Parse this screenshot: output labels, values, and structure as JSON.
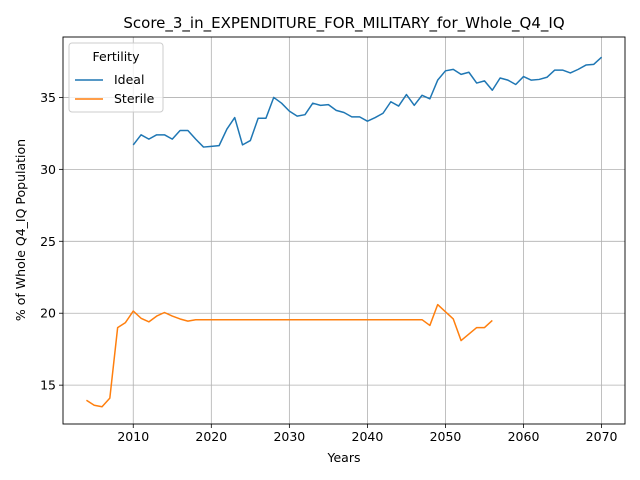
{
  "chart_data": {
    "type": "line",
    "title": "Score_3_in_EXPENDITURE_FOR_MILITARY_for_Whole_Q4_IQ",
    "xlabel": "Years",
    "ylabel": "% of Whole Q4_IQ Population",
    "xlim": [
      2001,
      2073
    ],
    "ylim": [
      12.3,
      39.2
    ],
    "xticks": [
      2010,
      2020,
      2030,
      2040,
      2050,
      2060,
      2070
    ],
    "yticks": [
      15,
      20,
      25,
      30,
      35
    ],
    "grid": true,
    "legend": {
      "title": "Fertility",
      "placement": "top-left"
    },
    "series": [
      {
        "name": "Ideal",
        "color": "#1f77b4",
        "x": [
          2010,
          2011,
          2012,
          2013,
          2014,
          2015,
          2016,
          2017,
          2018,
          2019,
          2020,
          2021,
          2022,
          2023,
          2024,
          2025,
          2026,
          2027,
          2028,
          2029,
          2030,
          2031,
          2032,
          2033,
          2034,
          2035,
          2036,
          2037,
          2038,
          2039,
          2040,
          2041,
          2042,
          2043,
          2044,
          2045,
          2046,
          2047,
          2048,
          2049,
          2050,
          2051,
          2052,
          2053,
          2054,
          2055,
          2056,
          2057,
          2058,
          2059,
          2060,
          2061,
          2062,
          2063,
          2064,
          2065,
          2066,
          2067,
          2068,
          2069,
          2070
        ],
        "y": [
          31.7,
          32.4,
          32.1,
          32.4,
          32.4,
          32.1,
          32.7,
          32.7,
          32.1,
          31.55,
          31.6,
          31.65,
          32.8,
          33.6,
          31.7,
          32.0,
          33.55,
          33.55,
          35.0,
          34.6,
          34.05,
          33.7,
          33.8,
          34.6,
          34.45,
          34.5,
          34.1,
          33.95,
          33.65,
          33.65,
          33.35,
          33.6,
          33.9,
          34.7,
          34.4,
          35.2,
          34.45,
          35.15,
          34.9,
          36.2,
          36.85,
          36.95,
          36.6,
          36.75,
          36.0,
          36.15,
          35.5,
          36.35,
          36.2,
          35.9,
          36.45,
          36.2,
          36.25,
          36.4,
          36.9,
          36.9,
          36.7,
          36.95,
          37.25,
          37.3,
          37.8
        ]
      },
      {
        "name": "Sterile",
        "color": "#ff7f0e",
        "x": [
          2004,
          2005,
          2006,
          2007,
          2008,
          2009,
          2010,
          2011,
          2012,
          2013,
          2014,
          2015,
          2016,
          2017,
          2018,
          2019,
          2020,
          2021,
          2022,
          2023,
          2024,
          2025,
          2026,
          2027,
          2028,
          2029,
          2030,
          2031,
          2032,
          2033,
          2034,
          2035,
          2036,
          2037,
          2038,
          2039,
          2040,
          2041,
          2042,
          2043,
          2044,
          2045,
          2046,
          2047,
          2048,
          2049,
          2050,
          2051,
          2052,
          2053,
          2054,
          2055,
          2056
        ],
        "y": [
          13.95,
          13.6,
          13.5,
          14.1,
          19.0,
          19.35,
          20.15,
          19.65,
          19.4,
          19.8,
          20.05,
          19.8,
          19.6,
          19.45,
          19.55,
          19.55,
          19.55,
          19.55,
          19.55,
          19.55,
          19.55,
          19.55,
          19.55,
          19.55,
          19.55,
          19.55,
          19.55,
          19.55,
          19.55,
          19.55,
          19.55,
          19.55,
          19.55,
          19.55,
          19.55,
          19.55,
          19.55,
          19.55,
          19.55,
          19.55,
          19.55,
          19.55,
          19.55,
          19.55,
          19.15,
          20.6,
          20.1,
          19.6,
          18.1,
          18.55,
          19.0,
          19.0,
          19.5
        ]
      }
    ]
  }
}
